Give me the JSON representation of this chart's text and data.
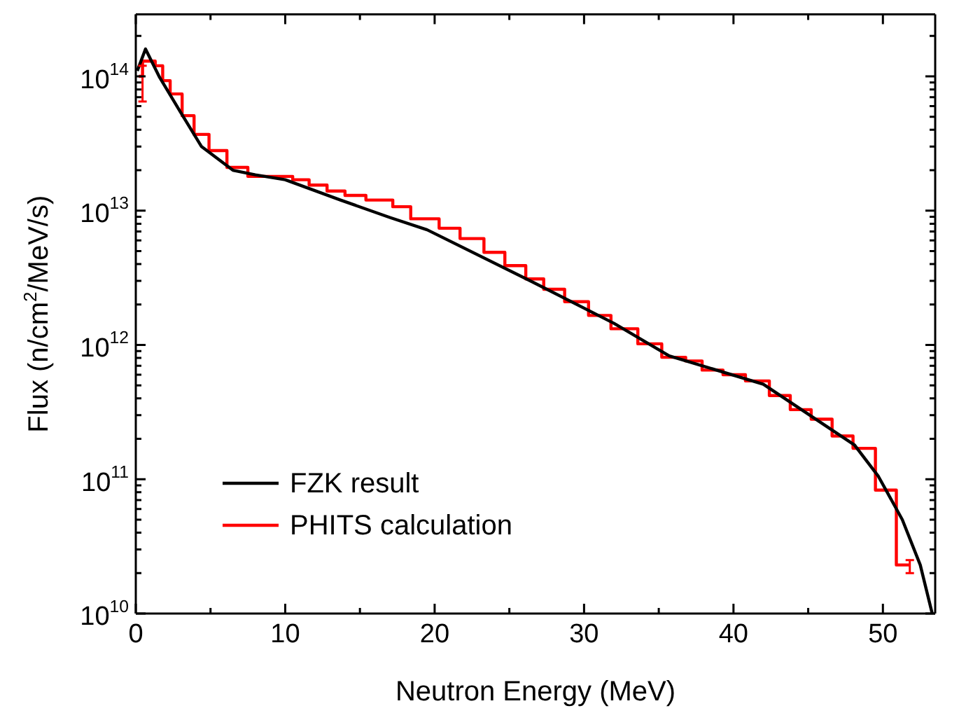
{
  "chart_data": {
    "type": "line",
    "xlabel": "Neutron Energy (MeV)",
    "ylabel": "Flux (n/cm$^{2}$/MeV/s)",
    "log": "y",
    "grid": false,
    "legend": "bottom left",
    "marker": "none",
    "xlim": [
      0,
      53.5
    ],
    "ylim": [
      10000000000.0,
      290000000000000.0
    ],
    "xticks": [
      0,
      {
        "value": 5,
        "label": null
      },
      10,
      {
        "value": 15,
        "label": null
      },
      20,
      {
        "value": 25,
        "label": null
      },
      30,
      {
        "value": 35,
        "label": null
      },
      40,
      {
        "value": 45,
        "label": null
      },
      50
    ],
    "yticks": [
      {
        "value": 10000000000.0,
        "label": "10$^{10}$"
      },
      {
        "value": 20000000000.0,
        "label": null
      },
      {
        "value": 30000000000.0,
        "label": null
      },
      {
        "value": 40000000000.0,
        "label": null
      },
      {
        "value": 50000000000.0,
        "label": null
      },
      {
        "value": 60000000000.0,
        "label": null
      },
      {
        "value": 70000000000.0,
        "label": null
      },
      {
        "value": 80000000000.0,
        "label": null
      },
      {
        "value": 90000000000.0,
        "label": null
      },
      {
        "value": 100000000000.0,
        "label": "10$^{11}$"
      },
      {
        "value": 200000000000.0,
        "label": null
      },
      {
        "value": 300000000000.0,
        "label": null
      },
      {
        "value": 400000000000.0,
        "label": null
      },
      {
        "value": 500000000000.0,
        "label": null
      },
      {
        "value": 600000000000.0,
        "label": null
      },
      {
        "value": 700000000000.0,
        "label": null
      },
      {
        "value": 800000000000.0,
        "label": null
      },
      {
        "value": 900000000000.0,
        "label": null
      },
      {
        "value": 1000000000000.0,
        "label": "10$^{12}$"
      },
      {
        "value": 2000000000000.0,
        "label": null
      },
      {
        "value": 3000000000000.0,
        "label": null
      },
      {
        "value": 4000000000000.0,
        "label": null
      },
      {
        "value": 5000000000000.0,
        "label": null
      },
      {
        "value": 6000000000000.0,
        "label": null
      },
      {
        "value": 7000000000000.0,
        "label": null
      },
      {
        "value": 8000000000000.0,
        "label": null
      },
      {
        "value": 9000000000000.0,
        "label": null
      },
      {
        "value": 10000000000000.0,
        "label": "10$^{13}$"
      },
      {
        "value": 20000000000000.0,
        "label": null
      },
      {
        "value": 30000000000000.0,
        "label": null
      },
      {
        "value": 40000000000000.0,
        "label": null
      },
      {
        "value": 50000000000000.0,
        "label": null
      },
      {
        "value": 60000000000000.0,
        "label": null
      },
      {
        "value": 70000000000000.0,
        "label": null
      },
      {
        "value": 80000000000000.0,
        "label": null
      },
      {
        "value": 90000000000000.0,
        "label": null
      },
      {
        "value": 100000000000000.0,
        "label": "10$^{14}$"
      },
      {
        "value": 200000000000000.0,
        "label": null
      }
    ],
    "series": [
      {
        "name": "FZK result",
        "type": "line",
        "color": "#000000",
        "x": [
          0.1,
          0.65,
          1.6,
          3.0,
          4.4,
          6.5,
          8.0,
          10,
          13.7,
          17,
          19.5,
          26.4,
          32,
          35.7,
          42,
          48.1,
          49.7,
          51.3,
          52.5,
          53.3
        ],
        "values": [
          110000000000000.0,
          160000000000000.0,
          98000000000000.0,
          54000000000000.0,
          30000000000000.0,
          20000000000000.0,
          18500000000000.0,
          17000000000000.0,
          12000000000000.0,
          8900000000000.0,
          7200000000000.0,
          3000000000000.0,
          1450000000000.0,
          830000000000.0,
          510000000000.0,
          180000000000.0,
          105000000000.0,
          50000000000.0,
          23000000000.0,
          10000000000.0
        ]
      },
      {
        "name": "PHITS calculation",
        "type": "histogram",
        "color": "#ff0000",
        "bins": [
          0.2,
          0.45,
          1.3,
          1.8,
          2.3,
          3.1,
          3.9,
          4.9,
          6.1,
          7.5,
          10.5,
          11.6,
          12.8,
          14.0,
          15.4,
          17.2,
          18.4,
          20.3,
          21.7,
          23.3,
          24.7,
          26.1,
          27.3,
          28.7,
          30.3,
          31.8,
          33.6,
          35.2,
          36.8,
          37.9,
          39.3,
          40.8,
          42.4,
          43.8,
          45.2,
          46.6,
          48.0,
          49.5,
          50.9,
          51.8
        ],
        "values": [
          100000000000000.0,
          130000000000000.0,
          120000000000000.0,
          93000000000000.0,
          74000000000000.0,
          51000000000000.0,
          37000000000000.0,
          28000000000000.0,
          21000000000000.0,
          18000000000000.0,
          17000000000000.0,
          15500000000000.0,
          14000000000000.0,
          13000000000000.0,
          12000000000000.0,
          10700000000000.0,
          8700000000000.0,
          7400000000000.0,
          6200000000000.0,
          4900000000000.0,
          3900000000000.0,
          3100000000000.0,
          2600000000000.0,
          2100000000000.0,
          1660000000000.0,
          1320000000000.0,
          1020000000000.0,
          810000000000.0,
          760000000000.0,
          650000000000.0,
          600000000000.0,
          540000000000.0,
          420000000000.0,
          330000000000.0,
          280000000000.0,
          210000000000.0,
          170000000000.0,
          83000000000.0,
          23000000000.0
        ],
        "errors": [
          [
            65000000000000.0,
            120000000000000.0
          ],
          null,
          null,
          null,
          null,
          null,
          null,
          null,
          null,
          null,
          null,
          null,
          null,
          null,
          null,
          null,
          null,
          null,
          null,
          null,
          null,
          null,
          null,
          null,
          null,
          null,
          null,
          null,
          null,
          null,
          null,
          null,
          null,
          null,
          null,
          null,
          null,
          null,
          [
            20000000000.0,
            25000000000.0
          ]
        ]
      }
    ]
  }
}
